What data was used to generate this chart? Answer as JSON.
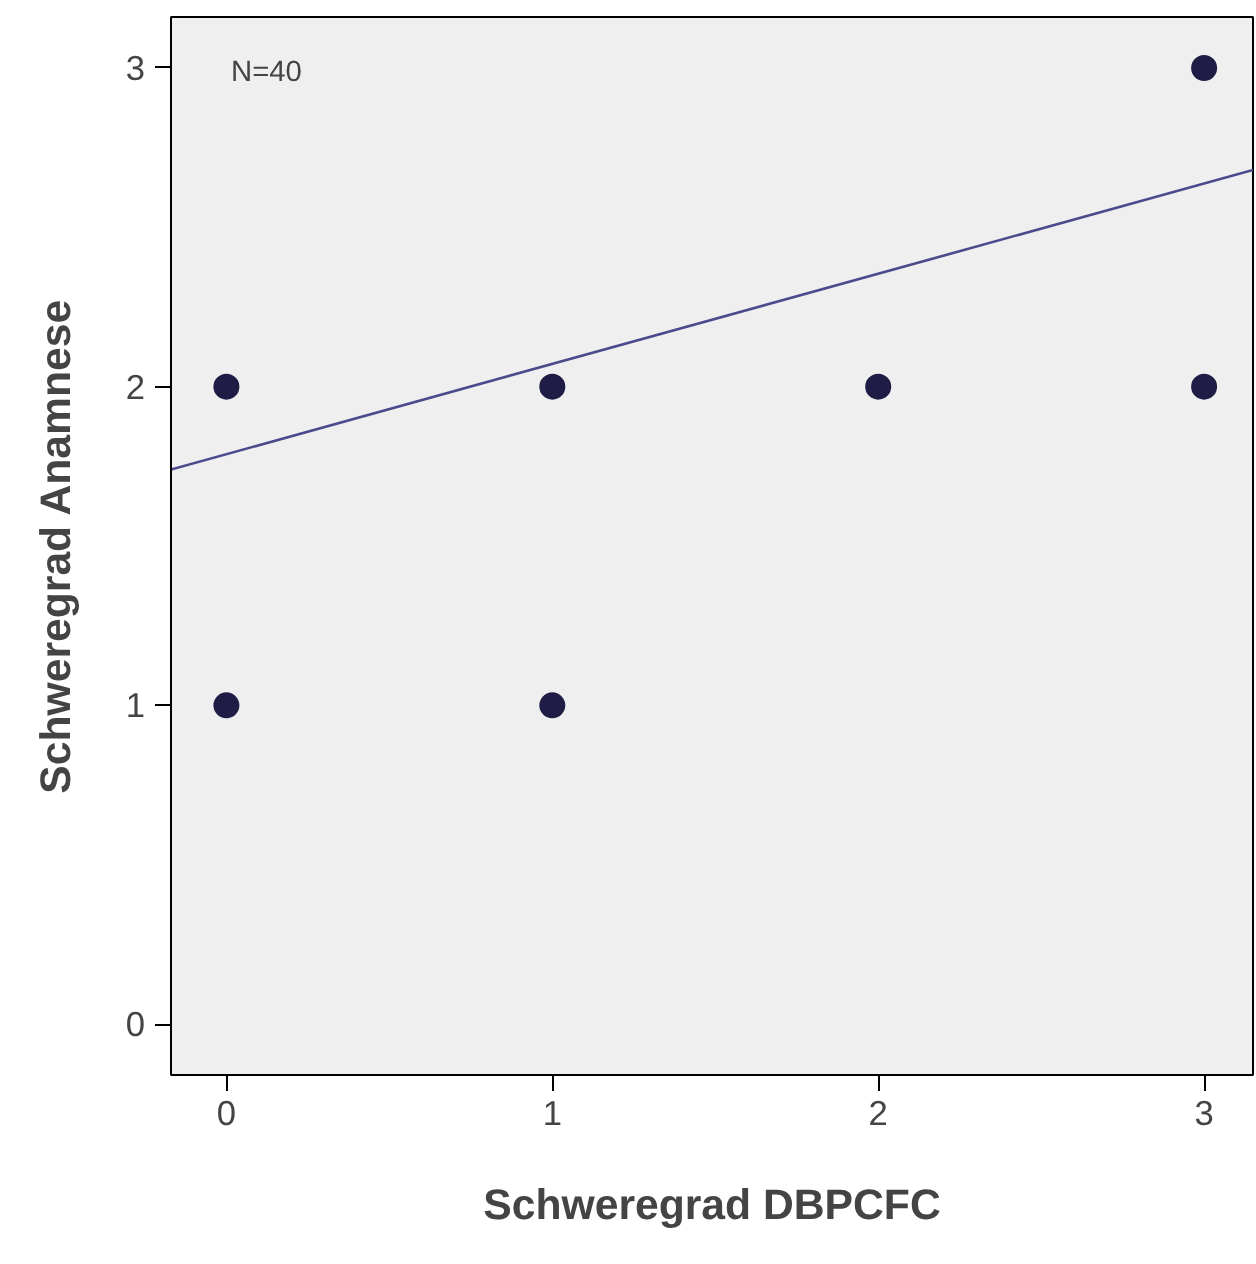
{
  "chart_data": {
    "type": "scatter",
    "xlabel": "Schweregrad DBPCFC",
    "ylabel": "Schweregrad Anamnese",
    "annotations": [
      "N=40"
    ],
    "series": [
      {
        "color": "#1f1d45",
        "x": [
          0,
          0,
          1,
          1,
          2,
          3,
          3
        ],
        "values": [
          2,
          1,
          2,
          1,
          2,
          3,
          2
        ]
      },
      {
        "type": "line",
        "marker": "none",
        "color": "#4a4a8c",
        "x": [
          -0.17,
          3.15
        ],
        "values": [
          1.74,
          2.68
        ]
      }
    ],
    "xlim": [
      -0.17,
      3.15
    ],
    "ylim": [
      -0.16,
      3.16
    ],
    "xticks": [
      0,
      1,
      2,
      3
    ],
    "yticks": [
      0,
      1,
      2,
      3
    ],
    "grid": false,
    "marker": "circle",
    "line_style": "solid"
  }
}
